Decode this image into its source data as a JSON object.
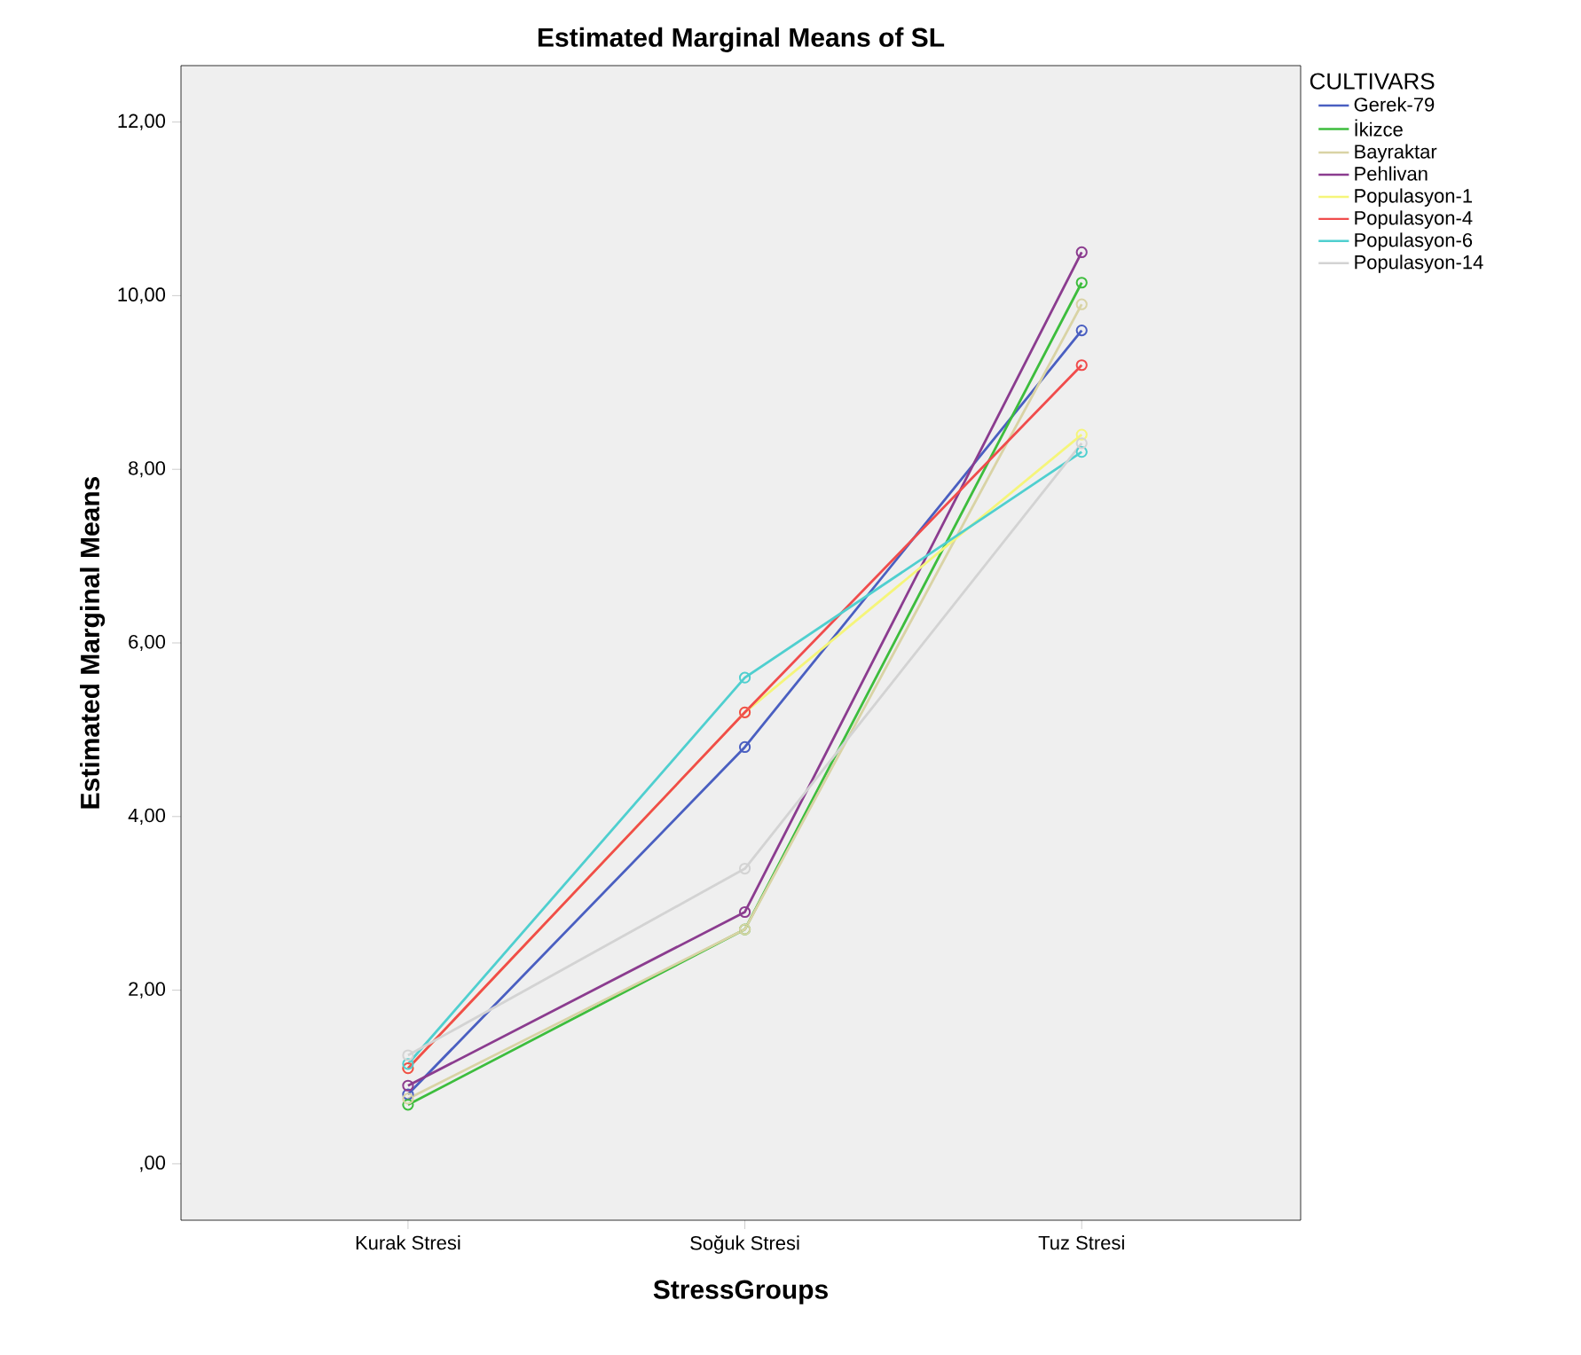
{
  "chart_data": {
    "type": "line",
    "title": "Estimated Marginal Means of SL",
    "xlabel": "StressGroups",
    "ylabel": "Estimated Marginal Means",
    "legend_title": "CULTIVARS",
    "categories": [
      "Kurak Stresi",
      "Soğuk Stresi",
      "Tuz Stresi"
    ],
    "series": [
      {
        "name": "Gerek-79",
        "color": "#4a5fc1",
        "values": [
          0.8,
          4.8,
          9.6
        ]
      },
      {
        "name": "İkizce",
        "color": "#3dbd3d",
        "values": [
          0.68,
          2.7,
          10.15
        ]
      },
      {
        "name": "Bayraktar",
        "color": "#d9d3a5",
        "values": [
          0.75,
          2.7,
          9.9
        ]
      },
      {
        "name": "Pehlivan",
        "color": "#8b3c8f",
        "values": [
          0.9,
          2.9,
          10.5
        ]
      },
      {
        "name": "Populasyon-1",
        "color": "#f5f57a",
        "values": [
          1.1,
          5.2,
          8.4
        ]
      },
      {
        "name": "Populasyon-4",
        "color": "#f04c4c",
        "values": [
          1.1,
          5.2,
          9.2
        ]
      },
      {
        "name": "Populasyon-6",
        "color": "#4fcfcf",
        "values": [
          1.15,
          5.6,
          8.2
        ]
      },
      {
        "name": "Populasyon-14",
        "color": "#d3d3d3",
        "values": [
          1.25,
          3.4,
          8.3
        ]
      }
    ],
    "ylim": [
      -0.65,
      12.65
    ],
    "yticks": [
      {
        "value": 0,
        "label": ",00"
      },
      {
        "value": 2,
        "label": "2,00"
      },
      {
        "value": 4,
        "label": "4,00"
      },
      {
        "value": 6,
        "label": "6,00"
      },
      {
        "value": 8,
        "label": "8,00"
      },
      {
        "value": 10,
        "label": "10,00"
      },
      {
        "value": 12,
        "label": "12,00"
      }
    ],
    "marker": "circle",
    "line_style": "solid",
    "legend": "right",
    "grid": false
  }
}
